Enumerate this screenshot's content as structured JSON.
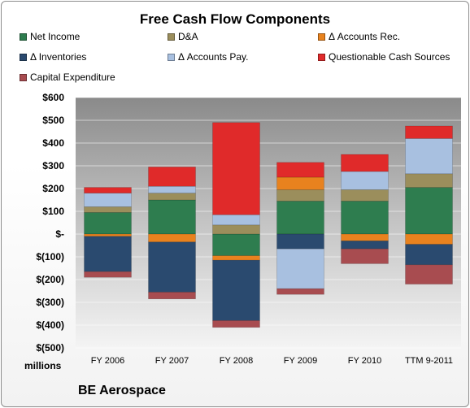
{
  "chart_data": {
    "type": "bar",
    "stacked": true,
    "title": "Free Cash Flow Components",
    "units_label": "millions",
    "footer": "BE Aerospace",
    "categories": [
      "FY 2006",
      "FY 2007",
      "FY 2008",
      "FY 2009",
      "FY 2010",
      "TTM 9-2011"
    ],
    "ylim": [
      -500,
      600
    ],
    "yticks": [
      600,
      500,
      400,
      300,
      200,
      100,
      0,
      -100,
      -200,
      -300,
      -400,
      -500
    ],
    "ytick_labels": [
      "$600",
      "$500",
      "$400",
      "$300",
      "$200",
      "$100",
      "$-",
      "$(100)",
      "$(200)",
      "$(300)",
      "$(400)",
      "$(500)"
    ],
    "grid": true,
    "legend_position": "top",
    "series": [
      {
        "name": "Net Income",
        "color": "#2e7d4f",
        "values": [
          95,
          150,
          -95,
          145,
          145,
          205
        ]
      },
      {
        "name": "D&A",
        "color": "#9b8e5c",
        "values": [
          25,
          30,
          40,
          50,
          50,
          60
        ]
      },
      {
        "name": "Δ Accounts Rec.",
        "color": "#e8821e",
        "values": [
          -10,
          -35,
          -20,
          55,
          -30,
          -45
        ]
      },
      {
        "name": "Δ Inventories",
        "color": "#2a4a6f",
        "values": [
          -155,
          -220,
          -265,
          -65,
          -35,
          -90
        ]
      },
      {
        "name": "Δ Accounts Pay.",
        "color": "#a8c0e0",
        "values": [
          60,
          30,
          45,
          -175,
          80,
          155
        ]
      },
      {
        "name": "Questionable Cash Sources",
        "color": "#e02a2a",
        "values": [
          25,
          85,
          405,
          65,
          75,
          55
        ]
      },
      {
        "name": "Capital Expenditure",
        "color": "#a84c50",
        "values": [
          -25,
          -30,
          -30,
          -25,
          -65,
          -85
        ]
      }
    ]
  }
}
